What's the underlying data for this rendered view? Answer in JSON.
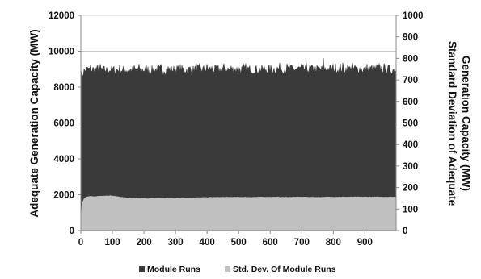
{
  "chart_data": {
    "type": "area",
    "xlabel": "",
    "ylabel": "Adequate Generation Capacity (MW)",
    "ylabel_right_lines": [
      "Standard Deviation of Adequate",
      "Generation Capacity (MW)"
    ],
    "xlim": [
      0,
      999
    ],
    "ylim": [
      0,
      12000
    ],
    "ylim_right": [
      0,
      1000
    ],
    "x_ticks": [
      "0",
      "100",
      "200",
      "300",
      "400",
      "500",
      "600",
      "700",
      "800",
      "900"
    ],
    "y_ticks": [
      "0",
      "2000",
      "4000",
      "6000",
      "8000",
      "10000",
      "12000"
    ],
    "y_ticks_right": [
      "0",
      "100",
      "200",
      "300",
      "400",
      "500",
      "600",
      "700",
      "800",
      "900",
      "1000"
    ],
    "grid": "horizontal",
    "legend_position": "bottom",
    "series": [
      {
        "name": "Module Runs",
        "axis": "left",
        "color": "#3a3a3a",
        "x": [
          0,
          10,
          20,
          40,
          60,
          80,
          100,
          150,
          200,
          250,
          300,
          350,
          400,
          450,
          500,
          550,
          600,
          650,
          700,
          750,
          800,
          850,
          900,
          950,
          999
        ],
        "values": [
          8600,
          8900,
          9000,
          8950,
          8980,
          8950,
          8970,
          8960,
          8980,
          8970,
          8990,
          8980,
          9000,
          8990,
          9000,
          8990,
          9010,
          9000,
          9020,
          9000,
          9010,
          9030,
          9000,
          9010,
          8950
        ],
        "noise_amplitude": 300
      },
      {
        "name": "Std. Dev. Of Module Runs",
        "axis": "right",
        "color": "#c0c0c0",
        "x": [
          0,
          2,
          5,
          10,
          20,
          30,
          40,
          50,
          70,
          90,
          100,
          120,
          150,
          180,
          200,
          250,
          300,
          350,
          400,
          450,
          500,
          550,
          600,
          650,
          700,
          750,
          800,
          850,
          900,
          950,
          999
        ],
        "values": [
          60,
          115,
          135,
          150,
          158,
          160,
          158,
          160,
          162,
          163,
          162,
          158,
          152,
          150,
          150,
          150,
          151,
          153,
          155,
          156,
          156,
          156,
          157,
          156,
          157,
          156,
          157,
          157,
          157,
          157,
          157
        ]
      }
    ]
  }
}
